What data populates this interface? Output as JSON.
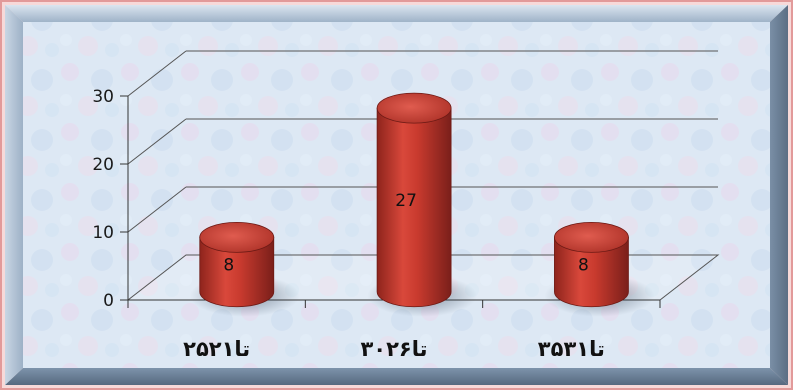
{
  "chart_data": {
    "type": "bar",
    "style": "3d-cylinder",
    "categories": [
      "۲۵تا۲۱",
      "۳۰تا۲۶",
      "۳۵تا۳۱"
    ],
    "values": [
      8,
      27,
      8
    ],
    "data_labels": [
      "8",
      "27",
      "8"
    ],
    "ylim": [
      0,
      30
    ],
    "yticks": [
      "0",
      "10",
      "20",
      "30"
    ],
    "grid": true,
    "legend": "none",
    "title": "",
    "xlabel": "",
    "ylabel": ""
  },
  "colors": {
    "bar": "#c0392b",
    "bar_dark": "#7a1f1a",
    "bar_light": "#e36b5e",
    "frame_outer": "#e8a0a0",
    "frame_bevel": "#8fa6bf",
    "plot_bg": "#dfe9f5",
    "grid": "#555555"
  }
}
